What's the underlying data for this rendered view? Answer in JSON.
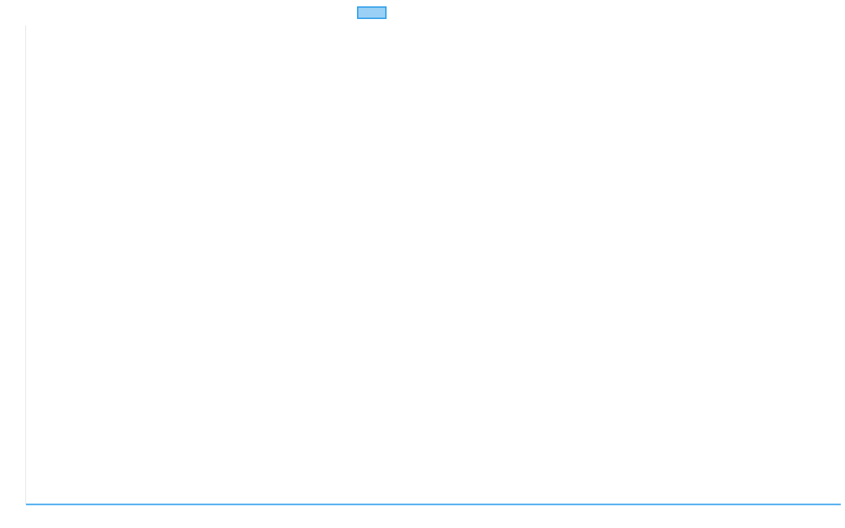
{
  "chart_data": {
    "type": "line",
    "title": "",
    "xlabel": "",
    "ylabel": "",
    "categories": [],
    "series": [
      {
        "name": "",
        "values": [],
        "color": "#36a2eb",
        "fill": "#9ad0f5"
      }
    ],
    "legend": "top",
    "grid": false,
    "axis_color": "#e5e5e5"
  }
}
